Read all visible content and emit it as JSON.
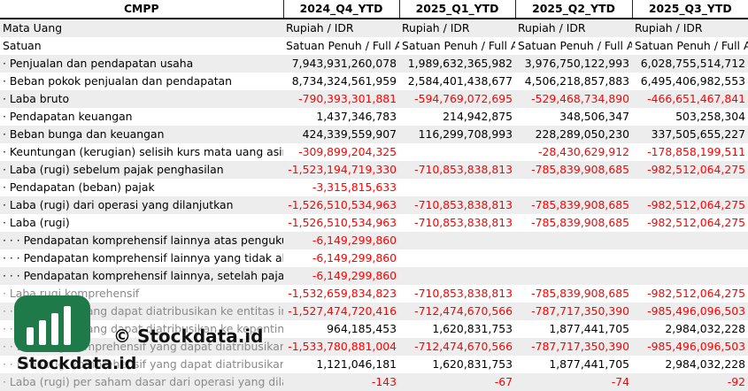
{
  "header": {
    "company": "CMPP",
    "periods": [
      "2024_Q4_YTD",
      "2025_Q1_YTD",
      "2025_Q2_YTD",
      "2025_Q3_YTD"
    ]
  },
  "rows": [
    {
      "label": "Mata Uang",
      "values": [
        "Rupiah / IDR",
        "Rupiah / IDR",
        "Rupiah / IDR",
        "Rupiah / IDR"
      ]
    },
    {
      "label": "Satuan",
      "values": [
        "Satuan Penuh / Full Amount",
        "Satuan Penuh / Full Amount",
        "Satuan Penuh / Full Amount",
        "Satuan Penuh / Full Amount"
      ]
    },
    {
      "label": "· Penjualan dan pendapatan usaha",
      "values": [
        "7,943,931,260,078",
        "1,989,632,365,982",
        "3,976,750,122,993",
        "6,028,755,514,712"
      ]
    },
    {
      "label": "· Beban pokok penjualan dan pendapatan",
      "values": [
        "8,734,324,561,959",
        "2,584,401,438,677",
        "4,506,218,857,883",
        "6,495,406,982,553"
      ]
    },
    {
      "label": "· Laba bruto",
      "values": [
        "-790,393,301,881",
        "-594,769,072,695",
        "-529,468,734,890",
        "-466,651,467,841"
      ]
    },
    {
      "label": "· Pendapatan keuangan",
      "values": [
        "1,437,346,783",
        "214,942,875",
        "348,506,347",
        "503,258,304"
      ]
    },
    {
      "label": "· Beban bunga dan keuangan",
      "values": [
        "424,339,559,907",
        "116,299,708,993",
        "228,289,050,230",
        "337,505,655,227"
      ]
    },
    {
      "label": "· Keuntungan (kerugian) selisih kurs mata uang asing",
      "values": [
        "-309,899,204,325",
        "",
        "-28,430,629,912",
        "-178,858,199,511"
      ]
    },
    {
      "label": "· Laba (rugi) sebelum pajak penghasilan",
      "values": [
        "-1,523,194,719,330",
        "-710,853,838,813",
        "-785,839,908,685",
        "-982,512,064,275"
      ]
    },
    {
      "label": "· Pendapatan (beban) pajak",
      "values": [
        "-3,315,815,633",
        "",
        "",
        ""
      ]
    },
    {
      "label": "· Laba (rugi) dari operasi yang dilanjutkan",
      "values": [
        "-1,526,510,534,963",
        "-710,853,838,813",
        "-785,839,908,685",
        "-982,512,064,275"
      ]
    },
    {
      "label": "· Laba (rugi)",
      "values": [
        "-1,526,510,534,963",
        "-710,853,838,813",
        "-785,839,908,685",
        "-982,512,064,275"
      ]
    },
    {
      "label": "· · · Pendapatan komprehensif lainnya atas pengukuran kembali",
      "values": [
        "-6,149,299,860",
        "",
        "",
        ""
      ]
    },
    {
      "label": "· · · Pendapatan komprehensif lainnya yang tidak akan direklasifikasi",
      "values": [
        "-6,149,299,860",
        "",
        "",
        ""
      ]
    },
    {
      "label": "· · · Pendapatan komprehensif lainnya, setelah pajak",
      "values": [
        "-6,149,299,860",
        "",
        "",
        ""
      ]
    },
    {
      "label": "· Laba rugi komprehensif",
      "values": [
        "-1,532,659,834,823",
        "-710,853,838,813",
        "-785,839,908,685",
        "-982,512,064,275"
      ]
    },
    {
      "label": "· · Laba (rugi) yang dapat diatribusikan ke entitas induk",
      "values": [
        "-1,527,474,720,416",
        "-712,474,670,566",
        "-787,717,350,390",
        "-985,496,096,503"
      ]
    },
    {
      "label": "· · Laba (rugi) yang dapat diatribusikan ke kepentingan nonpengendali",
      "values": [
        "964,185,453",
        "1,620,831,753",
        "1,877,441,705",
        "2,984,032,228"
      ]
    },
    {
      "label": "· · Laba rugi komprehensif yang dapat diatribusikan ke entitas induk",
      "values": [
        "-1,533,780,881,004",
        "-712,474,670,566",
        "-787,717,350,390",
        "-985,496,096,503"
      ]
    },
    {
      "label": "· · Laba rugi komprehensif yang dapat diatribusikan ke kepentingan nonpengendali",
      "values": [
        "1,121,046,181",
        "1,620,831,753",
        "1,877,441,705",
        "2,984,032,228"
      ]
    },
    {
      "label": "· Laba (rugi) per saham dasar dari operasi yang dilanjutkan",
      "values": [
        "-143",
        "-67",
        "-74",
        "-92"
      ]
    }
  ],
  "watermark": {
    "center_text": "© Stockdata.id",
    "logo_text": "Stockdata.id"
  },
  "colors": {
    "negative": "#ff0000",
    "row_shade": "#ededed",
    "logo_green": "#1f7a4a"
  }
}
